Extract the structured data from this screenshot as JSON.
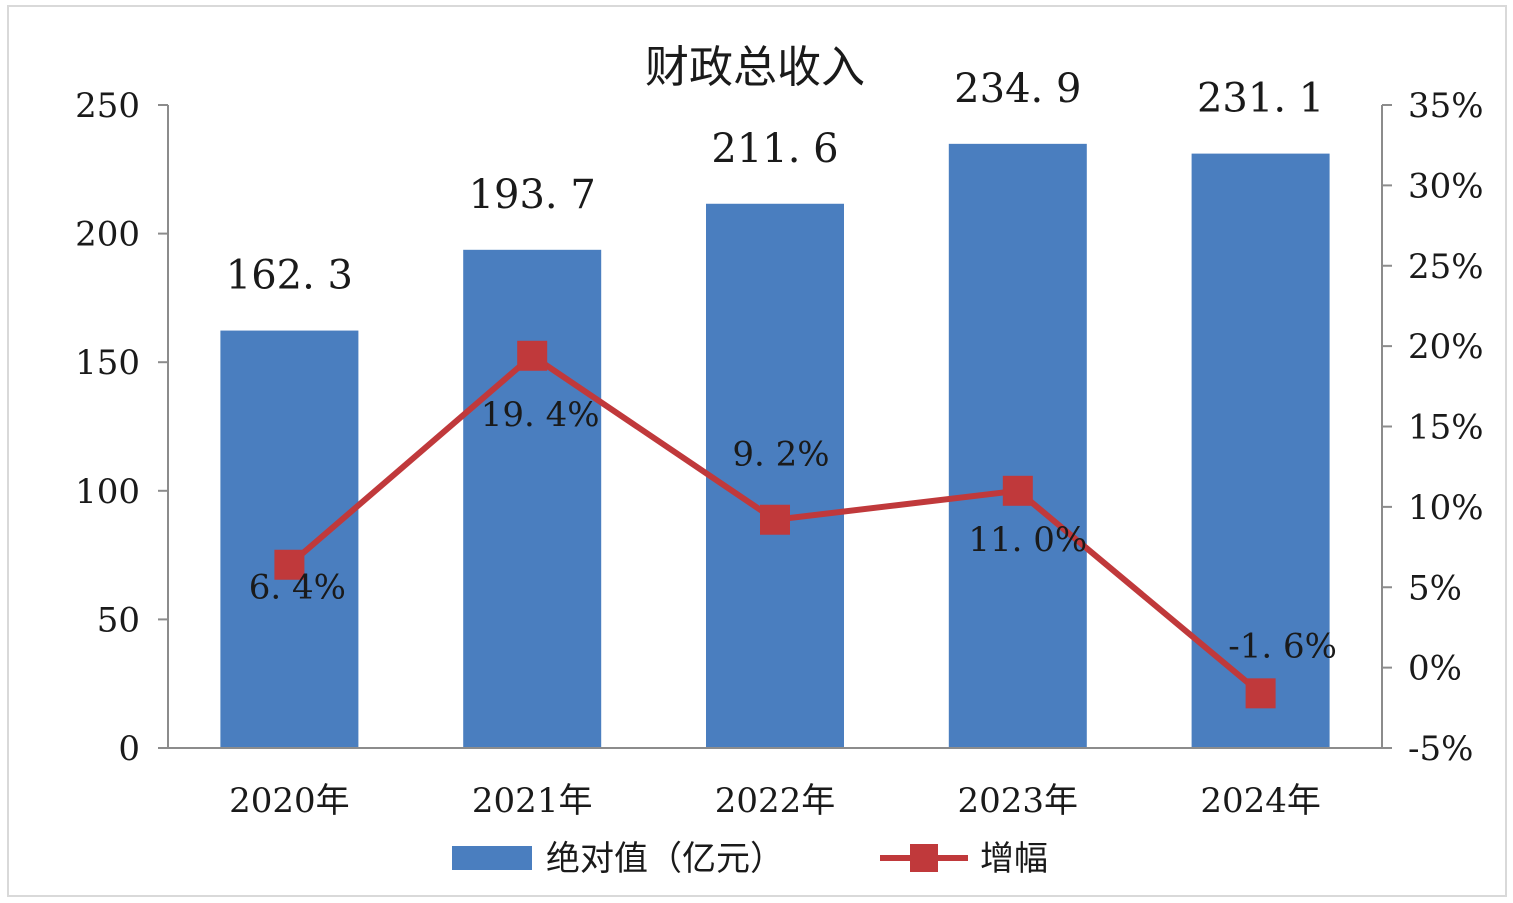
{
  "chart_data": {
    "type": "bar",
    "title": "财政总收入",
    "categories": [
      "2020年",
      "2021年",
      "2022年",
      "2023年",
      "2024年"
    ],
    "series": [
      {
        "name": "绝对值（亿元）",
        "type": "bar",
        "axis": "left",
        "color": "#4a7ebf",
        "values": [
          162.3,
          193.7,
          211.6,
          234.9,
          231.1
        ],
        "labels": [
          "162. 3",
          "193. 7",
          "211. 6",
          "234. 9",
          "231. 1"
        ]
      },
      {
        "name": "增幅",
        "type": "line",
        "axis": "right",
        "color": "#c0393b",
        "values": [
          6.4,
          19.4,
          9.2,
          11.0,
          -1.6
        ],
        "labels": [
          "6. 4%",
          "19. 4%",
          "9. 2%",
          "11. 0%",
          "-1. 6%"
        ]
      }
    ],
    "y_left": {
      "min": 0,
      "max": 250,
      "ticks": [
        "0",
        "50",
        "100",
        "150",
        "200",
        "250"
      ]
    },
    "y_right": {
      "min": -5,
      "max": 35,
      "ticks": [
        "-5%",
        "0%",
        "5%",
        "10%",
        "15%",
        "20%",
        "25%",
        "30%",
        "35%"
      ]
    },
    "legend_position": "bottom",
    "grid": false
  }
}
